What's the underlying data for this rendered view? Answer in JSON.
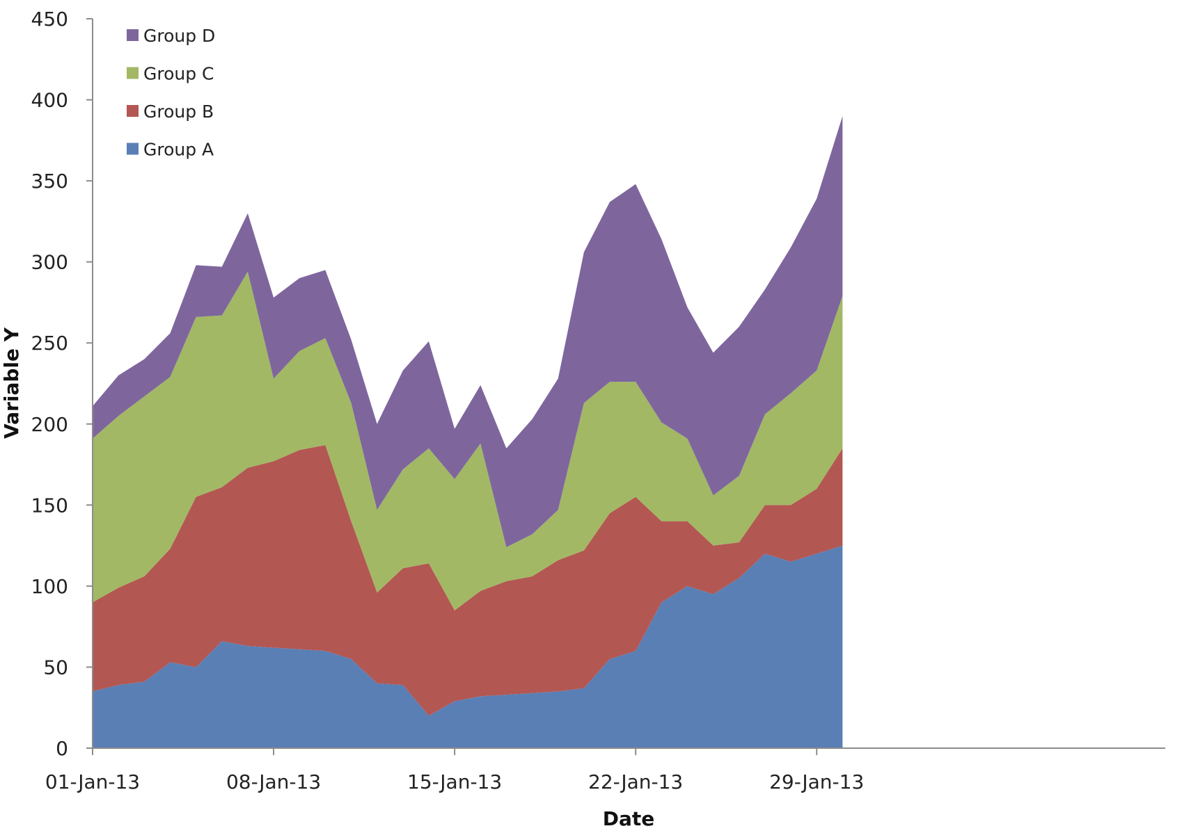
{
  "chart_data": {
    "type": "area",
    "stacked": true,
    "xlabel": "Date",
    "ylabel": "Variable Y",
    "ylim": [
      0,
      450
    ],
    "yticks": [
      0,
      50,
      100,
      150,
      200,
      250,
      300,
      350,
      400,
      450
    ],
    "x_tick_labels": [
      "01-Jan-13",
      "08-Jan-13",
      "15-Jan-13",
      "22-Jan-13",
      "29-Jan-13"
    ],
    "x": [
      "01-Jan-13",
      "02-Jan-13",
      "03-Jan-13",
      "04-Jan-13",
      "05-Jan-13",
      "06-Jan-13",
      "07-Jan-13",
      "08-Jan-13",
      "09-Jan-13",
      "10-Jan-13",
      "11-Jan-13",
      "12-Jan-13",
      "13-Jan-13",
      "14-Jan-13",
      "15-Jan-13",
      "16-Jan-13",
      "17-Jan-13",
      "18-Jan-13",
      "19-Jan-13",
      "20-Jan-13",
      "21-Jan-13",
      "22-Jan-13",
      "23-Jan-13",
      "24-Jan-13",
      "25-Jan-13",
      "26-Jan-13",
      "27-Jan-13",
      "28-Jan-13",
      "29-Jan-13",
      "30-Jan-13"
    ],
    "legend_position": "top-left",
    "grid": false,
    "series": [
      {
        "name": "Group A",
        "color": "#5a7fb5",
        "values": [
          35,
          39,
          41,
          53,
          50,
          66,
          63,
          62,
          61,
          60,
          55,
          40,
          39,
          20,
          29,
          32,
          33,
          34,
          35,
          37,
          55,
          60,
          90,
          100,
          95,
          105,
          120,
          115,
          120,
          125
        ]
      },
      {
        "name": "Group B",
        "color": "#b35752",
        "values": [
          55,
          60,
          65,
          70,
          105,
          95,
          110,
          115,
          123,
          127,
          85,
          56,
          72,
          94,
          56,
          65,
          70,
          72,
          81,
          85,
          90,
          95,
          50,
          40,
          30,
          22,
          30,
          35,
          40,
          60
        ]
      },
      {
        "name": "Group C",
        "color": "#a2b865",
        "values": [
          101,
          106,
          111,
          106,
          111,
          106,
          121,
          51,
          61,
          66,
          73,
          51,
          61,
          71,
          81,
          91,
          21,
          26,
          31,
          91,
          81,
          71,
          61,
          51,
          31,
          41,
          56,
          69,
          73,
          94
        ]
      },
      {
        "name": "Group D",
        "color": "#7e669d",
        "values": [
          20,
          25,
          23,
          27,
          32,
          30,
          36,
          50,
          45,
          42,
          39,
          53,
          61,
          66,
          31,
          36,
          61,
          71,
          81,
          93,
          111,
          122,
          113,
          81,
          88,
          92,
          77,
          90,
          106,
          111
        ]
      }
    ]
  }
}
